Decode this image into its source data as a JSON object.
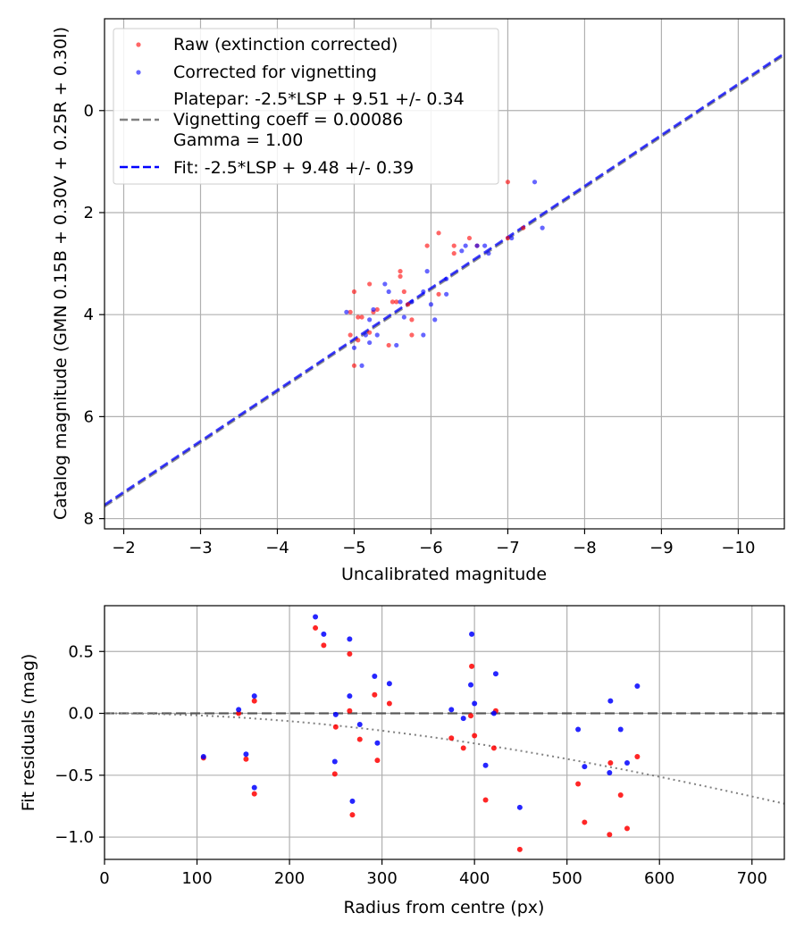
{
  "chart_data": [
    {
      "type": "scatter",
      "xlabel": "Uncalibrated magnitude",
      "ylabel": "Catalog magnitude (GMN 0.15B + 0.30V + 0.25R + 0.30I)",
      "xlim": [
        -1.75,
        -10.6
      ],
      "ylim": [
        8.2,
        -1.8
      ],
      "x_ticks": [
        -2,
        -3,
        -4,
        -5,
        -6,
        -7,
        -8,
        -9,
        -10
      ],
      "x_tick_labels": [
        "−2",
        "−3",
        "−4",
        "−5",
        "−6",
        "−7",
        "−8",
        "−9",
        "−10"
      ],
      "y_ticks": [
        0,
        2,
        4,
        6,
        8
      ],
      "y_tick_labels": [
        "0",
        "2",
        "4",
        "6",
        "8"
      ],
      "grid": true,
      "legend_position": "upper-left",
      "legend": {
        "raw": "Raw (extinction corrected)",
        "corrected": "Corrected for vignetting",
        "platepar_lines": [
          "Platepar: -2.5*LSP + 9.51 +/- 0.34",
          "Vignetting coeff = 0.00086",
          "Gamma = 1.00"
        ],
        "fit": "Fit: -2.5*LSP + 9.48 +/- 0.39"
      },
      "series": [
        {
          "name": "Raw (extinction corrected)",
          "color": "#ff0000",
          "points": [
            [
              -7.0,
              1.4
            ],
            [
              -7.2,
              2.3
            ],
            [
              -7.0,
              2.5
            ],
            [
              -6.1,
              2.4
            ],
            [
              -6.3,
              2.65
            ],
            [
              -6.5,
              2.5
            ],
            [
              -6.6,
              2.65
            ],
            [
              -5.95,
              2.65
            ],
            [
              -6.3,
              2.8
            ],
            [
              -5.2,
              3.4
            ],
            [
              -5.6,
              3.25
            ],
            [
              -5.6,
              3.15
            ],
            [
              -5.65,
              3.55
            ],
            [
              -6.1,
              3.6
            ],
            [
              -5.0,
              3.55
            ],
            [
              -5.5,
              3.75
            ],
            [
              -5.55,
              3.75
            ],
            [
              -5.7,
              3.8
            ],
            [
              -5.3,
              3.9
            ],
            [
              -5.25,
              3.95
            ],
            [
              -5.1,
              4.05
            ],
            [
              -5.05,
              4.05
            ],
            [
              -4.95,
              3.95
            ],
            [
              -5.75,
              4.1
            ],
            [
              -5.2,
              4.35
            ],
            [
              -4.95,
              4.4
            ],
            [
              -5.75,
              4.4
            ],
            [
              -5.05,
              4.5
            ],
            [
              -5.45,
              4.6
            ],
            [
              -5.0,
              5.0
            ]
          ]
        },
        {
          "name": "Corrected for vignetting",
          "color": "#0000ff",
          "points": [
            [
              -7.35,
              1.4
            ],
            [
              -7.45,
              2.3
            ],
            [
              -7.05,
              2.5
            ],
            [
              -6.6,
              2.65
            ],
            [
              -6.7,
              2.65
            ],
            [
              -6.45,
              2.65
            ],
            [
              -6.4,
              2.75
            ],
            [
              -6.75,
              2.8
            ],
            [
              -5.95,
              3.15
            ],
            [
              -6.2,
              3.3
            ],
            [
              -5.4,
              3.4
            ],
            [
              -5.45,
              3.55
            ],
            [
              -5.9,
              3.55
            ],
            [
              -6.2,
              3.6
            ],
            [
              -5.6,
              3.75
            ],
            [
              -5.75,
              3.75
            ],
            [
              -6.0,
              3.8
            ],
            [
              -5.25,
              3.9
            ],
            [
              -4.9,
              3.95
            ],
            [
              -5.65,
              4.05
            ],
            [
              -6.05,
              4.1
            ],
            [
              -5.2,
              4.1
            ],
            [
              -5.15,
              4.4
            ],
            [
              -5.3,
              4.4
            ],
            [
              -5.9,
              4.4
            ],
            [
              -5.2,
              4.55
            ],
            [
              -5.55,
              4.6
            ],
            [
              -5.0,
              4.65
            ],
            [
              -5.1,
              5.0
            ]
          ]
        }
      ],
      "lines": [
        {
          "name": "Platepar",
          "color": "#808080",
          "dash": "dashed",
          "slope": 1.0,
          "intercept": 9.51
        },
        {
          "name": "Fit",
          "color": "#0000ff",
          "dash": "dashed",
          "slope": 1.0,
          "intercept": 9.48
        }
      ]
    },
    {
      "type": "scatter",
      "xlabel": "Radius from centre (px)",
      "ylabel": "Fit residuals (mag)",
      "xlim": [
        0,
        735
      ],
      "ylim": [
        -1.18,
        0.87
      ],
      "x_ticks": [
        0,
        100,
        200,
        300,
        400,
        500,
        600,
        700
      ],
      "x_tick_labels": [
        "0",
        "100",
        "200",
        "300",
        "400",
        "500",
        "600",
        "700"
      ],
      "y_ticks": [
        -1.0,
        -0.5,
        0.0,
        0.5
      ],
      "y_tick_labels": [
        "−1.0",
        "−0.5",
        "0.0",
        "0.5"
      ],
      "grid": true,
      "series": [
        {
          "name": "Raw",
          "color": "#ff0000",
          "points": [
            [
              107,
              -0.36
            ],
            [
              145,
              0.0
            ],
            [
              153,
              -0.37
            ],
            [
              162,
              0.1
            ],
            [
              162,
              -0.65
            ],
            [
              228,
              0.69
            ],
            [
              237,
              0.55
            ],
            [
              249,
              -0.49
            ],
            [
              250,
              -0.11
            ],
            [
              265,
              0.48
            ],
            [
              265,
              0.02
            ],
            [
              268,
              -0.82
            ],
            [
              276,
              -0.21
            ],
            [
              292,
              0.15
            ],
            [
              295,
              -0.38
            ],
            [
              308,
              0.08
            ],
            [
              375,
              -0.2
            ],
            [
              388,
              -0.28
            ],
            [
              396,
              -0.02
            ],
            [
              397,
              0.38
            ],
            [
              400,
              -0.18
            ],
            [
              412,
              -0.7
            ],
            [
              421,
              -0.28
            ],
            [
              423,
              0.02
            ],
            [
              449,
              -1.1
            ],
            [
              512,
              -0.57
            ],
            [
              519,
              -0.88
            ],
            [
              547,
              -0.4
            ],
            [
              546,
              -0.98
            ],
            [
              558,
              -0.66
            ],
            [
              565,
              -0.93
            ],
            [
              576,
              -0.35
            ]
          ]
        },
        {
          "name": "Corrected",
          "color": "#0000ff",
          "points": [
            [
              107,
              -0.35
            ],
            [
              145,
              0.03
            ],
            [
              153,
              -0.33
            ],
            [
              162,
              0.14
            ],
            [
              162,
              -0.6
            ],
            [
              228,
              0.78
            ],
            [
              237,
              0.64
            ],
            [
              249,
              -0.39
            ],
            [
              250,
              -0.01
            ],
            [
              265,
              0.6
            ],
            [
              265,
              0.14
            ],
            [
              268,
              -0.71
            ],
            [
              276,
              -0.09
            ],
            [
              292,
              0.3
            ],
            [
              295,
              -0.24
            ],
            [
              308,
              0.24
            ],
            [
              375,
              0.03
            ],
            [
              388,
              -0.04
            ],
            [
              396,
              0.23
            ],
            [
              397,
              0.64
            ],
            [
              400,
              0.08
            ],
            [
              412,
              -0.42
            ],
            [
              421,
              0.0
            ],
            [
              423,
              0.32
            ],
            [
              449,
              -0.76
            ],
            [
              512,
              -0.13
            ],
            [
              519,
              -0.43
            ],
            [
              547,
              0.1
            ],
            [
              546,
              -0.48
            ],
            [
              558,
              -0.13
            ],
            [
              565,
              -0.4
            ],
            [
              576,
              0.22
            ]
          ]
        }
      ],
      "lines": [
        {
          "name": "zero",
          "color": "#404040",
          "dash": "dashed",
          "value": 0.0
        },
        {
          "name": "vignetting-curve",
          "color": "#808080",
          "dash": "dotted",
          "coeff": 0.00086
        }
      ]
    }
  ]
}
